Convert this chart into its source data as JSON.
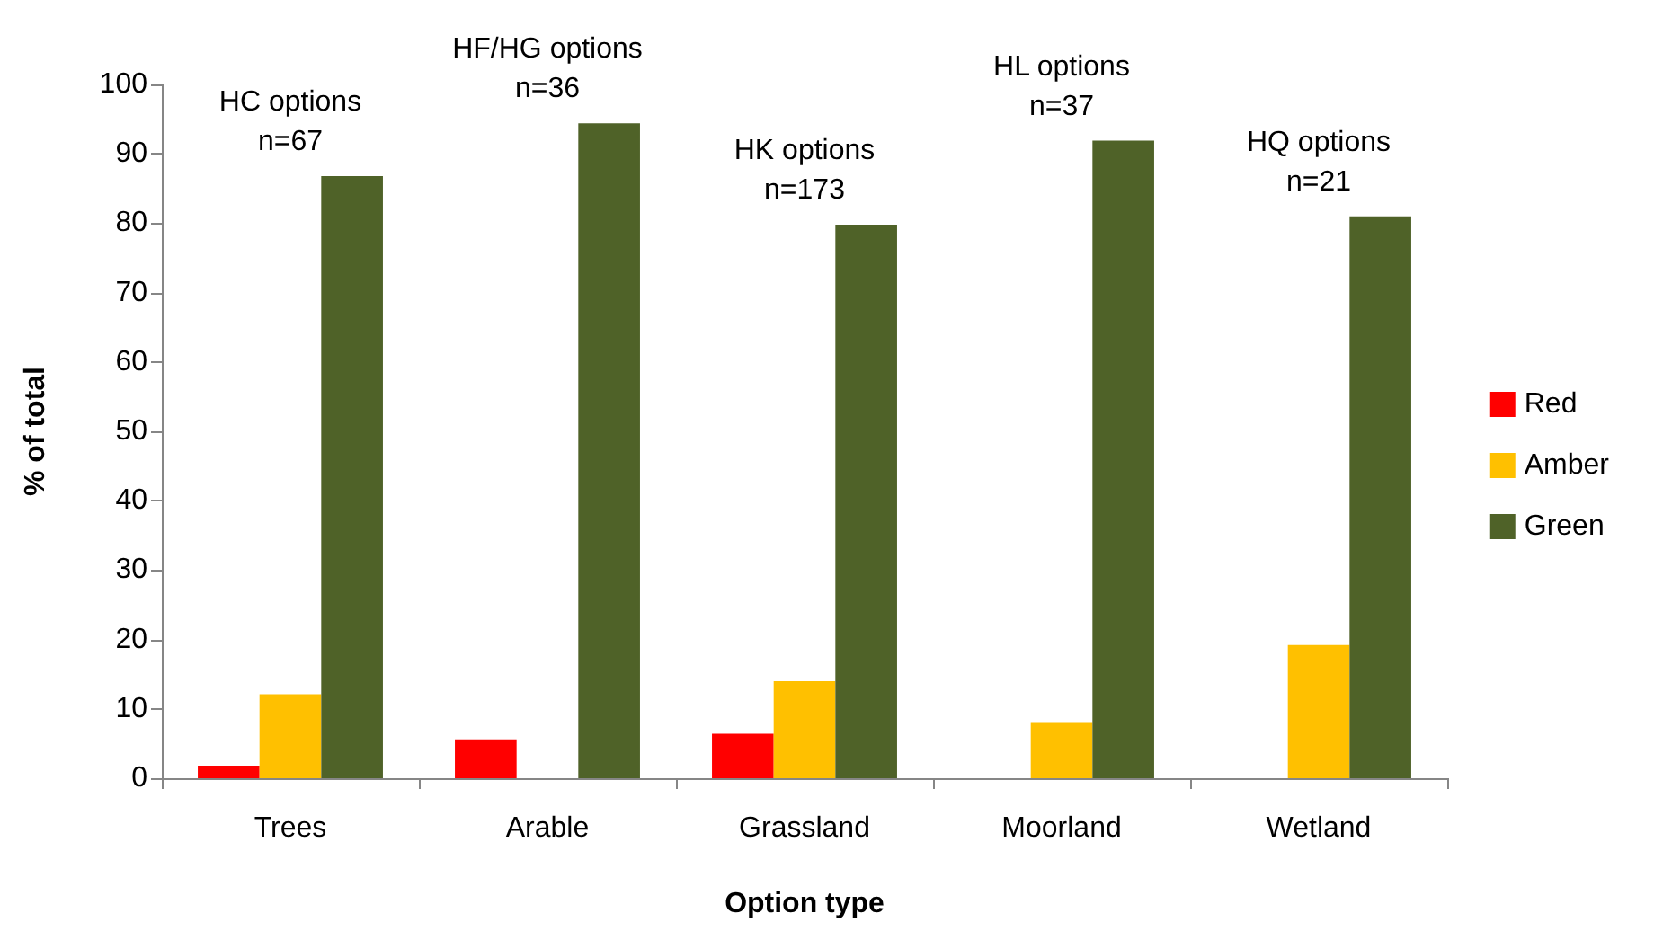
{
  "chart_data": {
    "type": "bar",
    "xlabel": "Option type",
    "ylabel": "% of total",
    "categories": [
      "Trees",
      "Arable",
      "Grassland",
      "Moorland",
      "Wetland"
    ],
    "series": [
      {
        "name": "Red",
        "color": "#ff0000",
        "values": [
          1.8,
          5.6,
          6.4,
          0,
          0
        ]
      },
      {
        "name": "Amber",
        "color": "#ffc000",
        "values": [
          12.1,
          0,
          14,
          8.1,
          19.2
        ]
      },
      {
        "name": "Green",
        "color": "#4f6228",
        "values": [
          86.8,
          94.4,
          79.8,
          91.9,
          81
        ]
      }
    ],
    "ylim": [
      0,
      100
    ],
    "yticks": [
      0,
      10,
      20,
      30,
      40,
      50,
      60,
      70,
      80,
      90,
      100
    ],
    "grid": false,
    "legend": "right",
    "annotations": [
      "HC options\nn=67",
      "HF/HG options\nn=36",
      "HK options\nn=173",
      "HL options\nn=37",
      "HQ options\nn=21"
    ]
  }
}
